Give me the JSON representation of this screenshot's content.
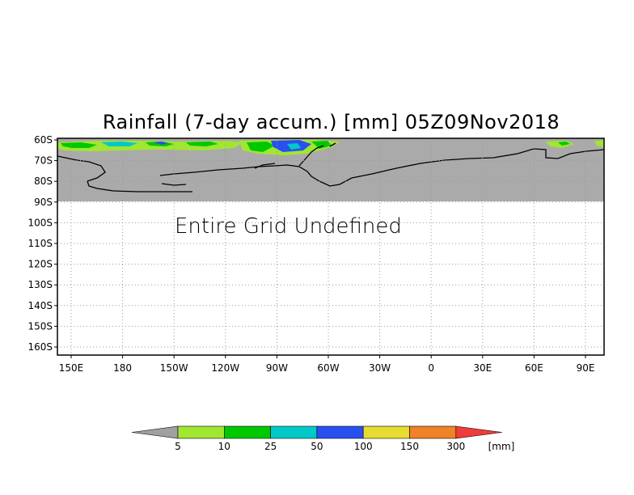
{
  "title": "Rainfall (7-day accum.) [mm] 05Z09Nov2018",
  "undefined_message": "Entire Grid Undefined",
  "map": {
    "lat_labels": [
      "60S",
      "70S",
      "80S",
      "90S",
      "100S",
      "110S",
      "120S",
      "130S",
      "140S",
      "150S",
      "160S"
    ],
    "lon_labels": [
      "150E",
      "180",
      "150W",
      "120W",
      "90W",
      "60W",
      "30W",
      "0",
      "30E",
      "60E",
      "90E"
    ],
    "land_color": "#aaaaaa",
    "grid_color": "#999999"
  },
  "colorbar": {
    "unit": "[mm]",
    "under_color": "#a0a0a0",
    "over_color": "#f03c3c",
    "bins": [
      {
        "color": "#a0e632",
        "label": "5"
      },
      {
        "color": "#00c800",
        "label": "10"
      },
      {
        "color": "#00c8c8",
        "label": "25"
      },
      {
        "color": "#2850f0",
        "label": "50"
      },
      {
        "color": "#e6dc32",
        "label": "100"
      },
      {
        "color": "#f08228",
        "label": "150"
      },
      {
        "color": "#f03c3c",
        "label": "300"
      }
    ]
  }
}
